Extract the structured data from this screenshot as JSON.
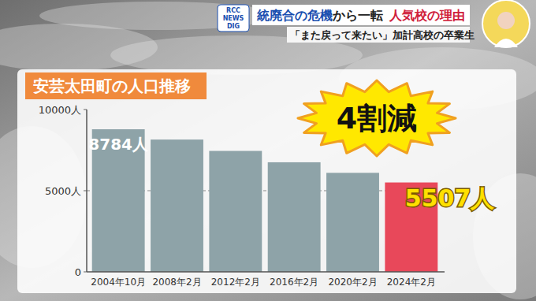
{
  "header": {
    "logo": "RCC NEWS DIG",
    "headline": [
      {
        "text": "統廃合の危機",
        "color": "#1a4fb0"
      },
      {
        "text": "から一転",
        "color": "#222222"
      },
      {
        "text": "人気校の理由",
        "color": "#d0203a"
      }
    ],
    "subheadline": "「また戻って来たい」加計高校の卒業生"
  },
  "chart_data": {
    "type": "bar",
    "title": "安芸太田町の人口推移",
    "categories": [
      "2004年10月",
      "2008年2月",
      "2012年2月",
      "2016年2月",
      "2020年2月",
      "2024年2月"
    ],
    "values": [
      8784,
      8150,
      7450,
      6750,
      6100,
      5507
    ],
    "value_labels": [
      "8784人",
      null,
      null,
      null,
      null,
      "5507人"
    ],
    "colors": [
      "#8ea3a8",
      "#8ea3a8",
      "#8ea3a8",
      "#8ea3a8",
      "#8ea3a8",
      "#e8485a"
    ],
    "ylim": [
      0,
      10000
    ],
    "yticks": [
      0,
      {
        "value": 5000,
        "label": "5000人"
      },
      {
        "value": 10000,
        "label": "10000人"
      }
    ],
    "grid": true,
    "annotations": [
      "4割減"
    ]
  }
}
